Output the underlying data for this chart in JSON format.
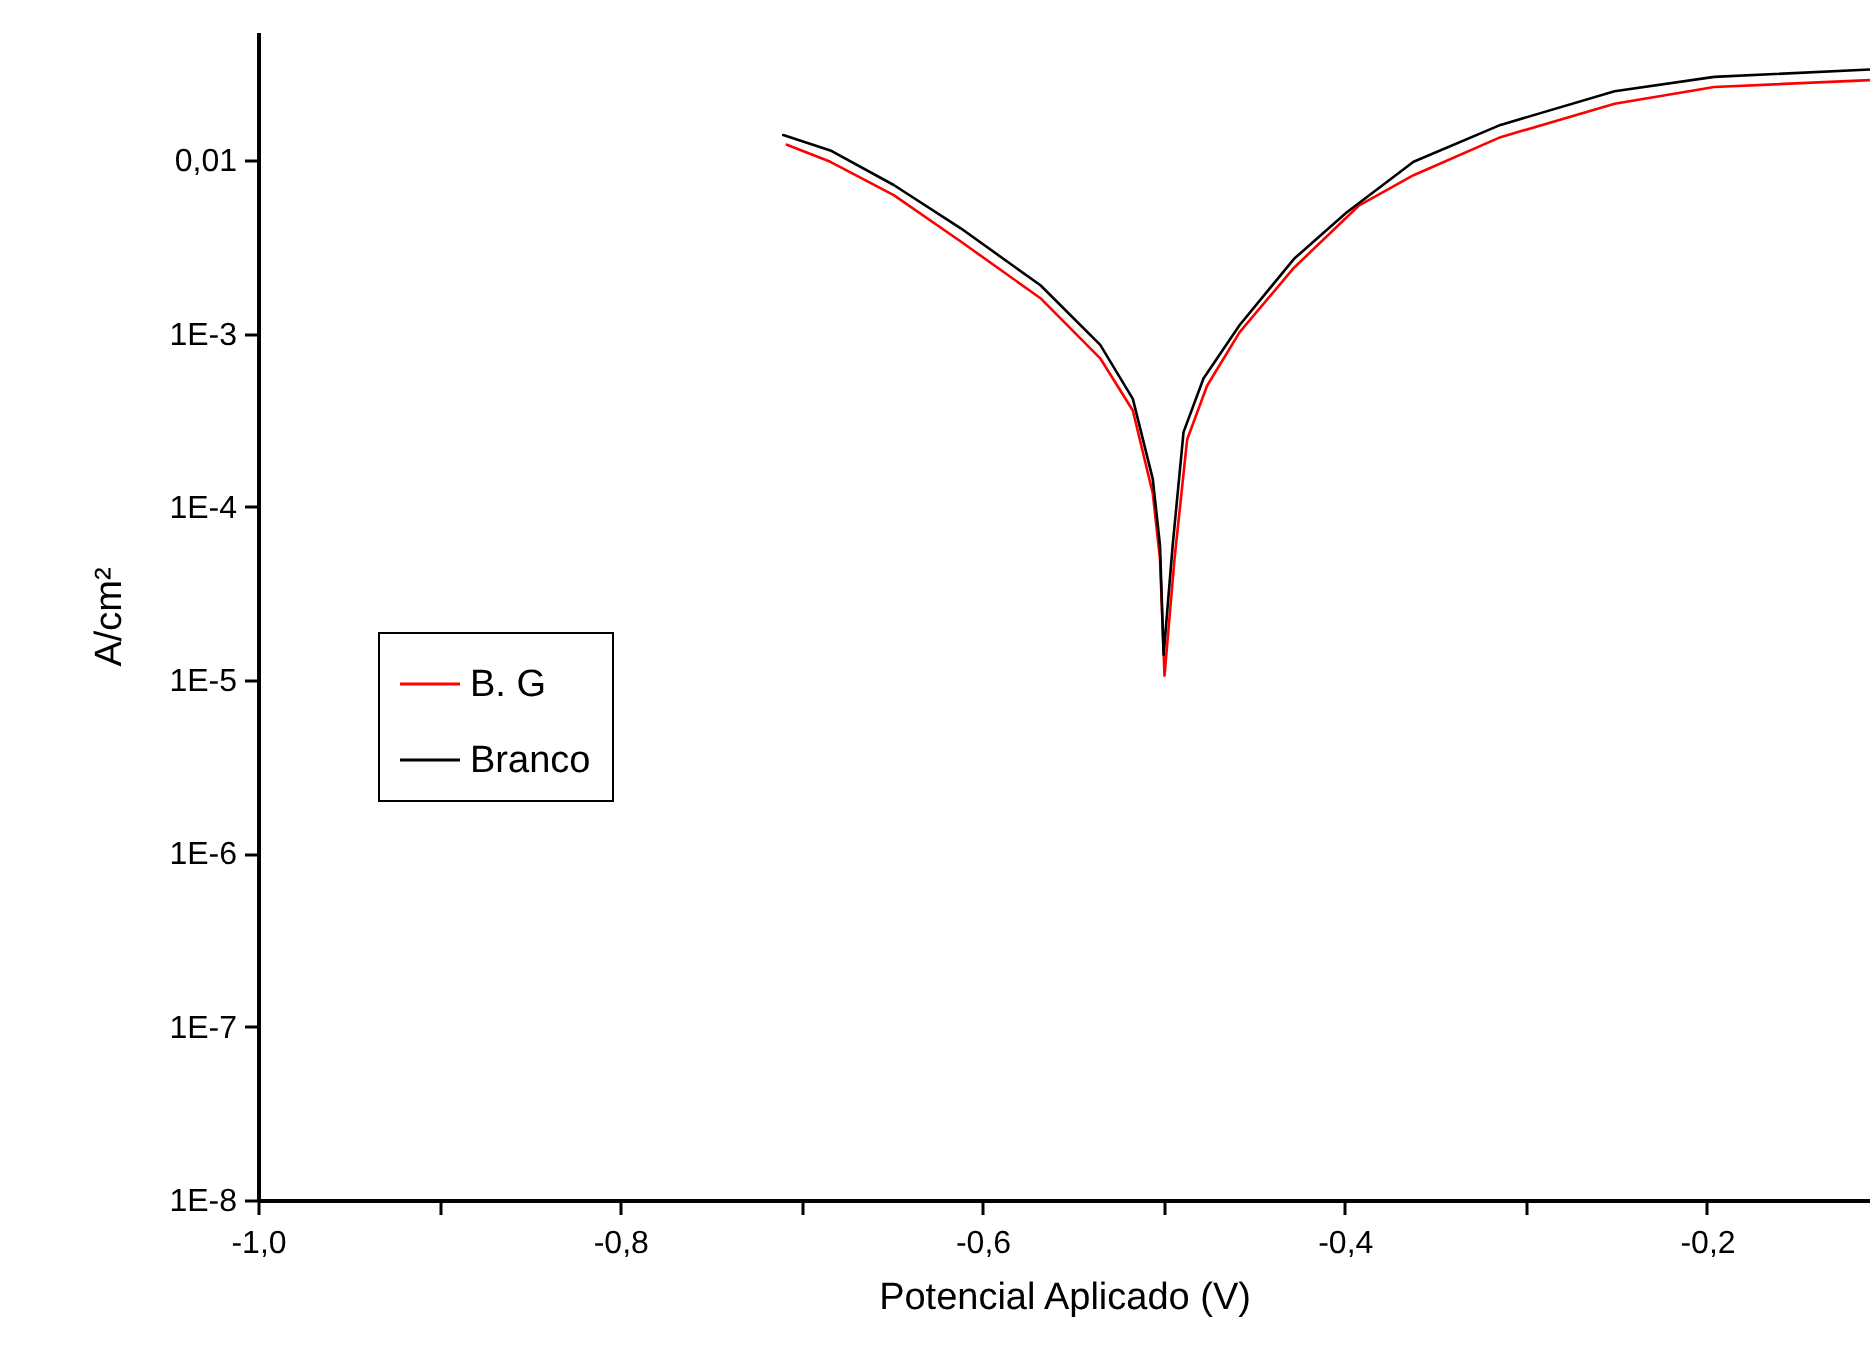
{
  "chart_data": {
    "type": "line",
    "xlabel": "Potencial Aplicado (V)",
    "ylabel": "A/cm²",
    "log": "y",
    "grid": false,
    "legend": "left",
    "line_style": "solid",
    "marker": "none",
    "xlim": [
      -1.0,
      -0.11
    ],
    "xticks": [
      {
        "value": -1.0,
        "label": "-1,0"
      },
      {
        "value": -0.9,
        "label": null
      },
      {
        "value": -0.8,
        "label": "-0,8"
      },
      {
        "value": -0.7,
        "label": null
      },
      {
        "value": -0.6,
        "label": "-0,6"
      },
      {
        "value": -0.5,
        "label": null
      },
      {
        "value": -0.4,
        "label": "-0,4"
      },
      {
        "value": -0.3,
        "label": null
      },
      {
        "value": -0.2,
        "label": "-0,2"
      }
    ],
    "ylim": [
      1e-08,
      0.055
    ],
    "yticks": [
      {
        "value": 1e-08,
        "label": "1E-8"
      },
      {
        "value": 1e-07,
        "label": "1E-7"
      },
      {
        "value": 1e-06,
        "label": "1E-6"
      },
      {
        "value": 1e-05,
        "label": "1E-5"
      },
      {
        "value": 0.0001,
        "label": "1E-4"
      },
      {
        "value": 0.001,
        "label": "1E-3"
      },
      {
        "value": 0.01,
        "label": "0,01"
      }
    ],
    "series": [
      {
        "name": "B. G",
        "color": "#ff0000",
        "x": [
          -0.708,
          -0.684,
          -0.649,
          -0.612,
          -0.568,
          -0.535,
          -0.517,
          -0.506,
          -0.502,
          -0.4995,
          -0.494,
          -0.487,
          -0.476,
          -0.458,
          -0.428,
          -0.392,
          -0.362,
          -0.314,
          -0.251,
          -0.196,
          -0.11
        ],
        "values": [
          0.0123,
          0.0098,
          0.0063,
          0.0034,
          0.0016,
          0.00072,
          0.00036,
          0.00012,
          5e-05,
          1.06e-05,
          5e-05,
          0.000245,
          0.0005,
          0.00102,
          0.0024,
          0.0055,
          0.0082,
          0.0136,
          0.0212,
          0.0265,
          0.029
        ]
      },
      {
        "name": "Branco",
        "color": "#000000",
        "x": [
          -0.71,
          -0.684,
          -0.649,
          -0.612,
          -0.568,
          -0.535,
          -0.517,
          -0.506,
          -0.502,
          -0.5,
          -0.495,
          -0.489,
          -0.478,
          -0.458,
          -0.428,
          -0.399,
          -0.362,
          -0.314,
          -0.251,
          -0.196,
          -0.11
        ],
        "values": [
          0.014,
          0.0114,
          0.0072,
          0.00405,
          0.0019,
          0.00086,
          0.00042,
          0.000145,
          6e-05,
          1.4e-05,
          6e-05,
          0.00027,
          0.00055,
          0.00112,
          0.0027,
          0.005,
          0.0098,
          0.016,
          0.025,
          0.0303,
          0.0334
        ]
      }
    ]
  }
}
